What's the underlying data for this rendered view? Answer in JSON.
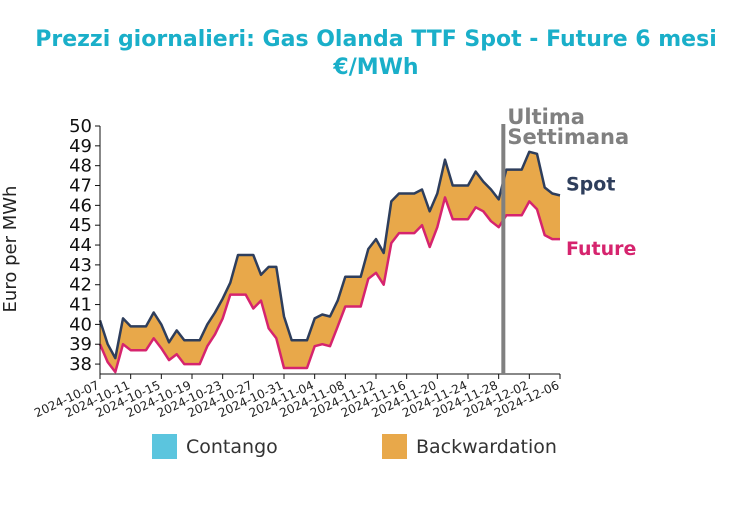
{
  "chart_data": {
    "type": "area",
    "title": "Prezzi giornalieri: Gas Olanda TTF Spot - Future 6 mesi",
    "subtitle": "€/MWh",
    "ylabel": "Euro per MWh",
    "xlabel": "",
    "ylim": [
      37.5,
      50
    ],
    "yticks": [
      38,
      39,
      40,
      41,
      42,
      43,
      44,
      45,
      46,
      47,
      48,
      49,
      50
    ],
    "xticks": [
      "2024-10-07",
      "2024-10-11",
      "2024-10-15",
      "2024-10-19",
      "2024-10-23",
      "2024-10-27",
      "2024-10-31",
      "2024-11-04",
      "2024-11-08",
      "2024-11-12",
      "2024-11-16",
      "2024-11-20",
      "2024-11-24",
      "2024-11-28",
      "2024-12-02",
      "2024-12-06"
    ],
    "x": [
      "2024-10-07",
      "2024-10-08",
      "2024-10-09",
      "2024-10-10",
      "2024-10-11",
      "2024-10-12",
      "2024-10-13",
      "2024-10-14",
      "2024-10-15",
      "2024-10-16",
      "2024-10-17",
      "2024-10-18",
      "2024-10-19",
      "2024-10-20",
      "2024-10-21",
      "2024-10-22",
      "2024-10-23",
      "2024-10-24",
      "2024-10-25",
      "2024-10-26",
      "2024-10-27",
      "2024-10-28",
      "2024-10-29",
      "2024-10-30",
      "2024-10-31",
      "2024-11-01",
      "2024-11-02",
      "2024-11-03",
      "2024-11-04",
      "2024-11-05",
      "2024-11-06",
      "2024-11-07",
      "2024-11-08",
      "2024-11-09",
      "2024-11-10",
      "2024-11-11",
      "2024-11-12",
      "2024-11-13",
      "2024-11-14",
      "2024-11-15",
      "2024-11-16",
      "2024-11-17",
      "2024-11-18",
      "2024-11-19",
      "2024-11-20",
      "2024-11-21",
      "2024-11-22",
      "2024-11-23",
      "2024-11-24",
      "2024-11-25",
      "2024-11-26",
      "2024-11-27",
      "2024-11-28",
      "2024-11-29",
      "2024-11-30",
      "2024-12-01",
      "2024-12-02",
      "2024-12-03",
      "2024-12-04",
      "2024-12-05",
      "2024-12-06"
    ],
    "series": [
      {
        "name": "Spot",
        "color": "#2e3e5c",
        "values": [
          40.2,
          39.0,
          38.3,
          40.3,
          39.9,
          39.9,
          39.9,
          40.6,
          40.0,
          39.1,
          39.7,
          39.2,
          39.2,
          39.2,
          40.0,
          40.6,
          41.3,
          42.1,
          43.5,
          43.5,
          43.5,
          42.5,
          42.9,
          42.9,
          40.4,
          39.2,
          39.2,
          39.2,
          40.3,
          40.5,
          40.4,
          41.2,
          42.4,
          42.4,
          42.4,
          43.8,
          44.3,
          43.6,
          46.2,
          46.6,
          46.6,
          46.6,
          46.8,
          45.7,
          46.6,
          48.3,
          47.0,
          47.0,
          47.0,
          47.7,
          47.2,
          46.8,
          46.3,
          47.8,
          47.8,
          47.8,
          48.7,
          48.6,
          46.9,
          46.6,
          46.5
        ]
      },
      {
        "name": "Future",
        "color": "#d6246e",
        "values": [
          39.0,
          38.1,
          37.6,
          39.0,
          38.7,
          38.7,
          38.7,
          39.3,
          38.8,
          38.2,
          38.5,
          38.0,
          38.0,
          38.0,
          38.9,
          39.5,
          40.3,
          41.5,
          41.5,
          41.5,
          40.8,
          41.2,
          39.8,
          39.3,
          37.8,
          37.8,
          37.8,
          37.8,
          38.9,
          39.0,
          38.9,
          39.9,
          40.9,
          40.9,
          40.9,
          42.3,
          42.6,
          42.0,
          44.1,
          44.6,
          44.6,
          44.6,
          45.0,
          43.9,
          44.9,
          46.4,
          45.3,
          45.3,
          45.3,
          45.9,
          45.7,
          45.2,
          44.9,
          45.5,
          45.5,
          45.5,
          46.2,
          45.8,
          44.5,
          44.3,
          44.3
        ]
      }
    ],
    "legend": {
      "position": "bottom",
      "items": [
        {
          "label": "Contango",
          "color": "#5bc5de"
        },
        {
          "label": "Backwardation",
          "color": "#e8a84a"
        }
      ]
    },
    "fill_colors": {
      "contango": "#5bc5de",
      "backwardation": "#e8a84a"
    },
    "annotation": {
      "lines": [
        "Ultima",
        "Settimana"
      ],
      "date": "2024-11-29",
      "color": "#808080"
    },
    "grid": false
  }
}
